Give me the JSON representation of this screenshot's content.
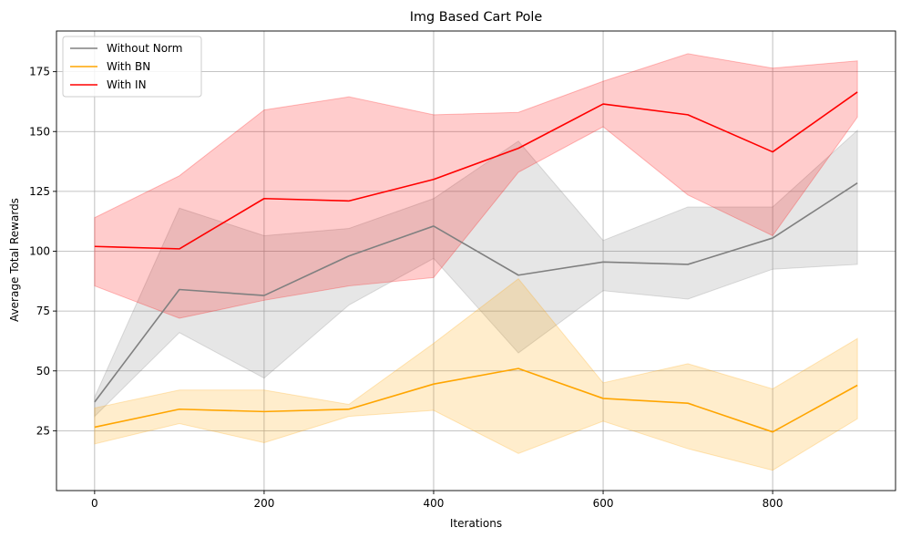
{
  "chart_data": {
    "type": "line",
    "title": "Img Based Cart Pole",
    "xlabel": "Iterations",
    "ylabel": "Average Total Rewards",
    "x": [
      0,
      100,
      200,
      300,
      400,
      500,
      600,
      700,
      800,
      900
    ],
    "xlim": [
      -45,
      945
    ],
    "ylim": [
      0,
      192
    ],
    "xticks": [
      0,
      200,
      400,
      600,
      800
    ],
    "yticks": [
      25,
      50,
      75,
      100,
      125,
      150,
      175
    ],
    "grid": true,
    "legend_position": "top-left",
    "series": [
      {
        "name": "Without Norm",
        "color": "#808080",
        "values": [
          37,
          84,
          81.5,
          98,
          110.5,
          90,
          95.5,
          94.5,
          105.5,
          128.5
        ],
        "lower": [
          31,
          66,
          47,
          77.5,
          97,
          57.5,
          83.5,
          80,
          92.5,
          94.5
        ],
        "upper": [
          39,
          118,
          106.5,
          109.5,
          122,
          146,
          104.5,
          118.5,
          118.5,
          150.5
        ]
      },
      {
        "name": "With BN",
        "color": "#ffa500",
        "values": [
          26.5,
          34,
          33,
          34,
          44.5,
          51,
          38.5,
          36.5,
          24.5,
          44
        ],
        "lower": [
          19.5,
          28,
          20,
          31,
          33.5,
          15.5,
          29,
          17.5,
          8.5,
          30
        ],
        "upper": [
          34.5,
          42,
          42,
          36,
          61.5,
          88.5,
          45,
          53,
          42.5,
          63.5
        ]
      },
      {
        "name": "With IN",
        "color": "#ff0000",
        "values": [
          102,
          101,
          122,
          121,
          130,
          143,
          161.5,
          157,
          141.5,
          166.5
        ],
        "lower": [
          85.5,
          72,
          79.5,
          85.5,
          89,
          133,
          152,
          123.5,
          106.5,
          156
        ],
        "upper": [
          114,
          131.5,
          159,
          164.5,
          157,
          158,
          171,
          182.5,
          176.5,
          179.5
        ]
      }
    ]
  }
}
